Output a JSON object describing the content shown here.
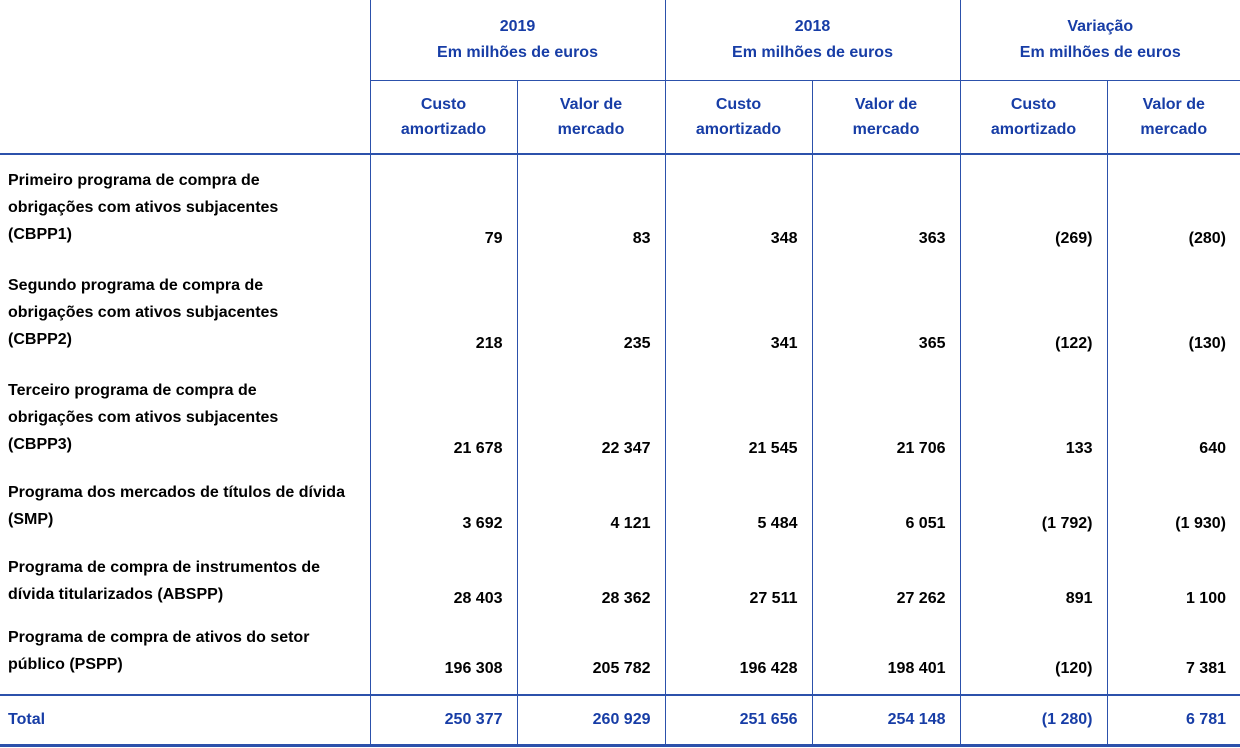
{
  "colors": {
    "accent_blue": "#173DA6",
    "border_blue": "#2C51AB",
    "body_text": "#000000",
    "background": "#FFFFFF"
  },
  "table": {
    "groups": [
      {
        "title": "2019",
        "subtitle": "Em milhões de euros"
      },
      {
        "title": "2018",
        "subtitle": "Em milhões de euros"
      },
      {
        "title": "Variação",
        "subtitle": "Em milhões de euros"
      }
    ],
    "sub_headers": [
      "Custo\namortizado",
      "Valor de\nmercado",
      "Custo\namortizado",
      "Valor de\nmercado",
      "Custo\namortizado",
      "Valor de\nmercado"
    ],
    "rows": [
      {
        "label": "Primeiro programa de compra de obrigações com ativos subjacentes (CBPP1)",
        "values": [
          "79",
          "83",
          "348",
          "363",
          "(269)",
          "(280)"
        ]
      },
      {
        "label": "Segundo programa de compra de obrigações com ativos subjacentes (CBPP2)",
        "values": [
          "218",
          "235",
          "341",
          "365",
          "(122)",
          "(130)"
        ]
      },
      {
        "label": "Terceiro programa de compra de obrigações com ativos subjacentes (CBPP3)",
        "values": [
          "21 678",
          "22 347",
          "21 545",
          "21 706",
          "133",
          "640"
        ]
      },
      {
        "label": "Programa dos mercados de títulos de dívida (SMP)",
        "values": [
          "3 692",
          "4 121",
          "5 484",
          "6 051",
          "(1 792)",
          "(1 930)"
        ]
      },
      {
        "label": "Programa de compra de instrumentos de dívida titularizados (ABSPP)",
        "values": [
          "28 403",
          "28 362",
          "27 511",
          "27 262",
          "891",
          "1 100"
        ]
      },
      {
        "label": "Programa de compra de ativos do setor público (PSPP)",
        "values": [
          "196 308",
          "205 782",
          "196 428",
          "198 401",
          "(120)",
          "7 381"
        ]
      }
    ],
    "total": {
      "label": "Total",
      "values": [
        "250 377",
        "260 929",
        "251 656",
        "254 148",
        "(1 280)",
        "6 781"
      ]
    }
  }
}
